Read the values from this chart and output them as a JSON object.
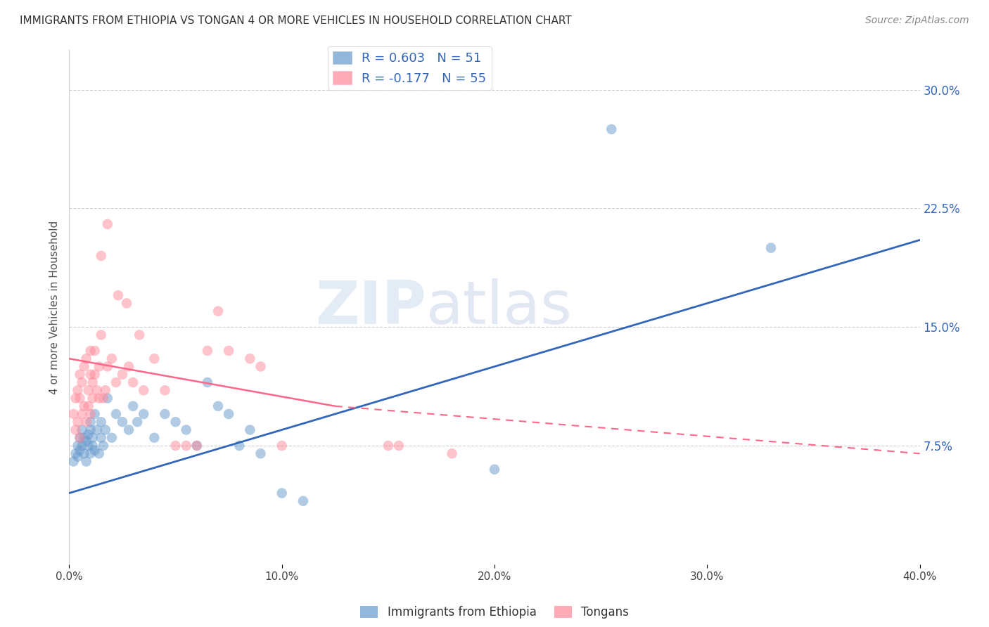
{
  "title": "IMMIGRANTS FROM ETHIOPIA VS TONGAN 4 OR MORE VEHICLES IN HOUSEHOLD CORRELATION CHART",
  "source": "Source: ZipAtlas.com",
  "ylabel": "4 or more Vehicles in Household",
  "x_tick_labels": [
    "0.0%",
    "10.0%",
    "20.0%",
    "30.0%",
    "40.0%"
  ],
  "x_tick_vals": [
    0.0,
    10.0,
    20.0,
    30.0,
    40.0
  ],
  "y_tick_labels": [
    "7.5%",
    "15.0%",
    "22.5%",
    "30.0%"
  ],
  "y_tick_vals": [
    7.5,
    15.0,
    22.5,
    30.0
  ],
  "xlim": [
    0.0,
    40.0
  ],
  "ylim": [
    0.0,
    32.5
  ],
  "legend_label1": "R = 0.603   N = 51",
  "legend_label2": "R = -0.177   N = 55",
  "legend_label_bottom1": "Immigrants from Ethiopia",
  "legend_label_bottom2": "Tongans",
  "blue_color": "#6699CC",
  "pink_color": "#FF8899",
  "blue_line_color": "#3366BB",
  "pink_line_color": "#FF6688",
  "watermark_zip": "ZIP",
  "watermark_atlas": "atlas",
  "blue_scatter_x": [
    0.2,
    0.3,
    0.4,
    0.4,
    0.5,
    0.5,
    0.6,
    0.6,
    0.7,
    0.7,
    0.8,
    0.8,
    0.9,
    0.9,
    1.0,
    1.0,
    1.0,
    1.1,
    1.1,
    1.2,
    1.2,
    1.3,
    1.4,
    1.5,
    1.5,
    1.6,
    1.7,
    1.8,
    2.0,
    2.2,
    2.5,
    2.8,
    3.0,
    3.2,
    3.5,
    4.0,
    4.5,
    5.0,
    5.5,
    6.0,
    6.5,
    7.0,
    7.5,
    8.0,
    8.5,
    9.0,
    10.0,
    11.0,
    25.5,
    33.0,
    20.0
  ],
  "blue_scatter_y": [
    6.5,
    7.0,
    6.8,
    7.5,
    7.2,
    8.0,
    7.5,
    8.5,
    7.0,
    8.0,
    6.5,
    7.8,
    7.5,
    8.2,
    7.0,
    8.5,
    9.0,
    7.5,
    8.0,
    7.2,
    9.5,
    8.5,
    7.0,
    8.0,
    9.0,
    7.5,
    8.5,
    10.5,
    8.0,
    9.5,
    9.0,
    8.5,
    10.0,
    9.0,
    9.5,
    8.0,
    9.5,
    9.0,
    8.5,
    7.5,
    11.5,
    10.0,
    9.5,
    7.5,
    8.5,
    7.0,
    4.5,
    4.0,
    27.5,
    20.0,
    6.0
  ],
  "pink_scatter_x": [
    0.2,
    0.3,
    0.3,
    0.4,
    0.4,
    0.5,
    0.5,
    0.5,
    0.6,
    0.6,
    0.7,
    0.7,
    0.8,
    0.8,
    0.9,
    0.9,
    1.0,
    1.0,
    1.0,
    1.1,
    1.1,
    1.2,
    1.2,
    1.3,
    1.4,
    1.4,
    1.5,
    1.6,
    1.7,
    1.8,
    2.0,
    2.2,
    2.5,
    2.8,
    3.0,
    3.5,
    4.0,
    4.5,
    5.0,
    5.5,
    6.0,
    6.5,
    7.0,
    7.5,
    8.5,
    9.0,
    10.0,
    15.0,
    15.5,
    18.0,
    1.5,
    1.8,
    2.3,
    2.7,
    3.3
  ],
  "pink_scatter_y": [
    9.5,
    8.5,
    10.5,
    9.0,
    11.0,
    8.0,
    10.5,
    12.0,
    9.5,
    11.5,
    10.0,
    12.5,
    9.0,
    13.0,
    10.0,
    11.0,
    9.5,
    12.0,
    13.5,
    11.5,
    10.5,
    12.0,
    13.5,
    11.0,
    10.5,
    12.5,
    14.5,
    10.5,
    11.0,
    12.5,
    13.0,
    11.5,
    12.0,
    12.5,
    11.5,
    11.0,
    13.0,
    11.0,
    7.5,
    7.5,
    7.5,
    13.5,
    16.0,
    13.5,
    13.0,
    12.5,
    7.5,
    7.5,
    7.5,
    7.0,
    19.5,
    21.5,
    17.0,
    16.5,
    14.5
  ],
  "blue_line_x": [
    0.0,
    40.0
  ],
  "blue_line_y": [
    4.5,
    20.5
  ],
  "pink_solid_line_x": [
    0.0,
    12.5
  ],
  "pink_solid_line_y": [
    13.0,
    10.0
  ],
  "pink_dashed_line_x": [
    12.5,
    40.0
  ],
  "pink_dashed_line_y": [
    10.0,
    7.0
  ],
  "grid_color": "#CCCCCC",
  "background_color": "#FFFFFF"
}
